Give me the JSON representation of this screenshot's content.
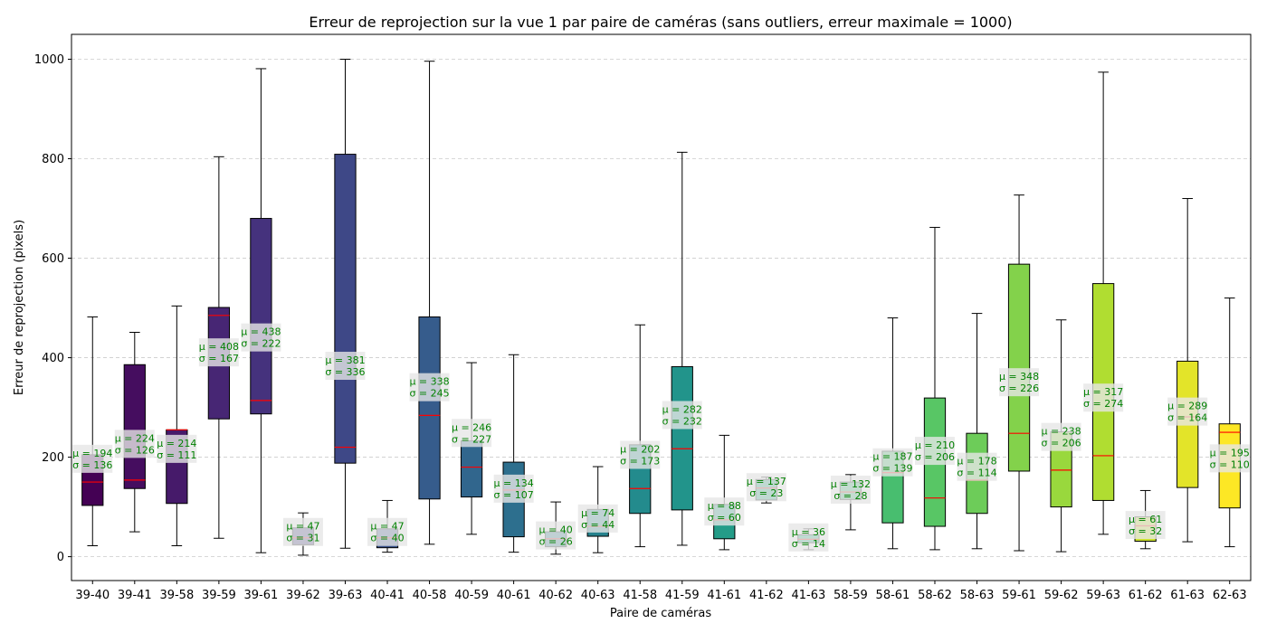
{
  "chart_data": {
    "type": "box",
    "title": "Erreur de reprojection sur la vue 1 par paire de caméras (sans outliers, erreur maximale = 1000)",
    "xlabel": "Paire de caméras",
    "ylabel": "Erreur de reprojection (pixels)",
    "ylim": [
      -48,
      1050
    ],
    "yticks": [
      0,
      200,
      400,
      600,
      800,
      1000
    ],
    "grid": "y, dashed",
    "median_color": "#ff0000",
    "annotation_color": "#008000",
    "colormap": "viridis",
    "boxes": [
      {
        "label": "39-40",
        "whisker_low": 22,
        "q1": 103,
        "median": 150,
        "q3": 205,
        "whisker_high": 482,
        "mean_label": "μ = 194",
        "std_label": "σ = 136"
      },
      {
        "label": "39-41",
        "whisker_low": 50,
        "q1": 137,
        "median": 154,
        "q3": 386,
        "whisker_high": 451,
        "mean_label": "μ = 224",
        "std_label": "σ = 126"
      },
      {
        "label": "39-58",
        "whisker_low": 22,
        "q1": 107,
        "median": 255,
        "q3": 255,
        "whisker_high": 504,
        "mean_label": "μ = 214",
        "std_label": "σ = 111"
      },
      {
        "label": "39-59",
        "whisker_low": 37,
        "q1": 277,
        "median": 485,
        "q3": 501,
        "whisker_high": 804,
        "mean_label": "μ = 408",
        "std_label": "σ = 167"
      },
      {
        "label": "39-61",
        "whisker_low": 8,
        "q1": 287,
        "median": 314,
        "q3": 680,
        "whisker_high": 981,
        "mean_label": "μ = 438",
        "std_label": "σ = 222"
      },
      {
        "label": "39-62",
        "whisker_low": 3,
        "q1": 24,
        "median": 38,
        "q3": 58,
        "whisker_high": 88,
        "mean_label": "μ = 47",
        "std_label": "σ = 31"
      },
      {
        "label": "39-63",
        "whisker_low": 17,
        "q1": 188,
        "median": 220,
        "q3": 809,
        "whisker_high": 1000,
        "mean_label": "μ = 381",
        "std_label": "σ = 336"
      },
      {
        "label": "40-41",
        "whisker_low": 9,
        "q1": 18,
        "median": 38,
        "q3": 56,
        "whisker_high": 113,
        "mean_label": "μ = 47",
        "std_label": "σ = 40"
      },
      {
        "label": "40-58",
        "whisker_low": 25,
        "q1": 116,
        "median": 284,
        "q3": 482,
        "whisker_high": 996,
        "mean_label": "μ = 338",
        "std_label": "σ = 245"
      },
      {
        "label": "40-59",
        "whisker_low": 45,
        "q1": 120,
        "median": 180,
        "q3": 233,
        "whisker_high": 390,
        "mean_label": "μ = 246",
        "std_label": "σ = 227"
      },
      {
        "label": "40-61",
        "whisker_low": 9,
        "q1": 40,
        "median": 134,
        "q3": 190,
        "whisker_high": 406,
        "mean_label": "μ = 134",
        "std_label": "σ = 107"
      },
      {
        "label": "40-62",
        "whisker_low": 5,
        "q1": 20,
        "median": 36,
        "q3": 50,
        "whisker_high": 110,
        "mean_label": "μ = 40",
        "std_label": "σ = 26"
      },
      {
        "label": "40-63",
        "whisker_low": 8,
        "q1": 41,
        "median": 61,
        "q3": 95,
        "whisker_high": 181,
        "mean_label": "μ = 74",
        "std_label": "σ = 44"
      },
      {
        "label": "41-58",
        "whisker_low": 20,
        "q1": 87,
        "median": 137,
        "q3": 225,
        "whisker_high": 466,
        "mean_label": "μ = 202",
        "std_label": "σ = 173"
      },
      {
        "label": "41-59",
        "whisker_low": 23,
        "q1": 94,
        "median": 217,
        "q3": 382,
        "whisker_high": 813,
        "mean_label": "μ = 282",
        "std_label": "σ = 232"
      },
      {
        "label": "41-61",
        "whisker_low": 14,
        "q1": 36,
        "median": 74,
        "q3": 105,
        "whisker_high": 244,
        "mean_label": "μ = 88",
        "std_label": "σ = 60"
      },
      {
        "label": "41-62",
        "whisker_low": 108,
        "q1": 114,
        "median": 138,
        "q3": 155,
        "whisker_high": 160,
        "mean_label": "μ = 137",
        "std_label": "σ = 23"
      },
      {
        "label": "41-63",
        "whisker_low": 14,
        "q1": 28,
        "median": 35,
        "q3": 44,
        "whisker_high": 56,
        "mean_label": "μ = 36",
        "std_label": "σ = 14"
      },
      {
        "label": "58-59",
        "whisker_low": 54,
        "q1": 115,
        "median": 130,
        "q3": 150,
        "whisker_high": 165,
        "mean_label": "μ = 132",
        "std_label": "σ = 28"
      },
      {
        "label": "58-61",
        "whisker_low": 16,
        "q1": 68,
        "median": 169,
        "q3": 212,
        "whisker_high": 480,
        "mean_label": "μ = 187",
        "std_label": "σ = 139"
      },
      {
        "label": "58-62",
        "whisker_low": 14,
        "q1": 61,
        "median": 118,
        "q3": 319,
        "whisker_high": 662,
        "mean_label": "μ = 210",
        "std_label": "σ = 206"
      },
      {
        "label": "58-63",
        "whisker_low": 16,
        "q1": 87,
        "median": 154,
        "q3": 248,
        "whisker_high": 489,
        "mean_label": "μ = 178",
        "std_label": "σ = 114"
      },
      {
        "label": "59-61",
        "whisker_low": 12,
        "q1": 172,
        "median": 248,
        "q3": 588,
        "whisker_high": 727,
        "mean_label": "μ = 348",
        "std_label": "σ = 226"
      },
      {
        "label": "59-62",
        "whisker_low": 10,
        "q1": 100,
        "median": 174,
        "q3": 251,
        "whisker_high": 476,
        "mean_label": "μ = 238",
        "std_label": "σ = 206"
      },
      {
        "label": "59-63",
        "whisker_low": 45,
        "q1": 113,
        "median": 203,
        "q3": 549,
        "whisker_high": 974,
        "mean_label": "μ = 317",
        "std_label": "σ = 274"
      },
      {
        "label": "61-62",
        "whisker_low": 16,
        "q1": 31,
        "median": 62,
        "q3": 80,
        "whisker_high": 133,
        "mean_label": "μ = 61",
        "std_label": "σ = 32"
      },
      {
        "label": "61-63",
        "whisker_low": 30,
        "q1": 139,
        "median": 281,
        "q3": 393,
        "whisker_high": 720,
        "mean_label": "μ = 289",
        "std_label": "σ = 164"
      },
      {
        "label": "62-63",
        "whisker_low": 20,
        "q1": 98,
        "median": 250,
        "q3": 267,
        "whisker_high": 520,
        "mean_label": "μ = 195",
        "std_label": "σ = 110"
      }
    ]
  }
}
